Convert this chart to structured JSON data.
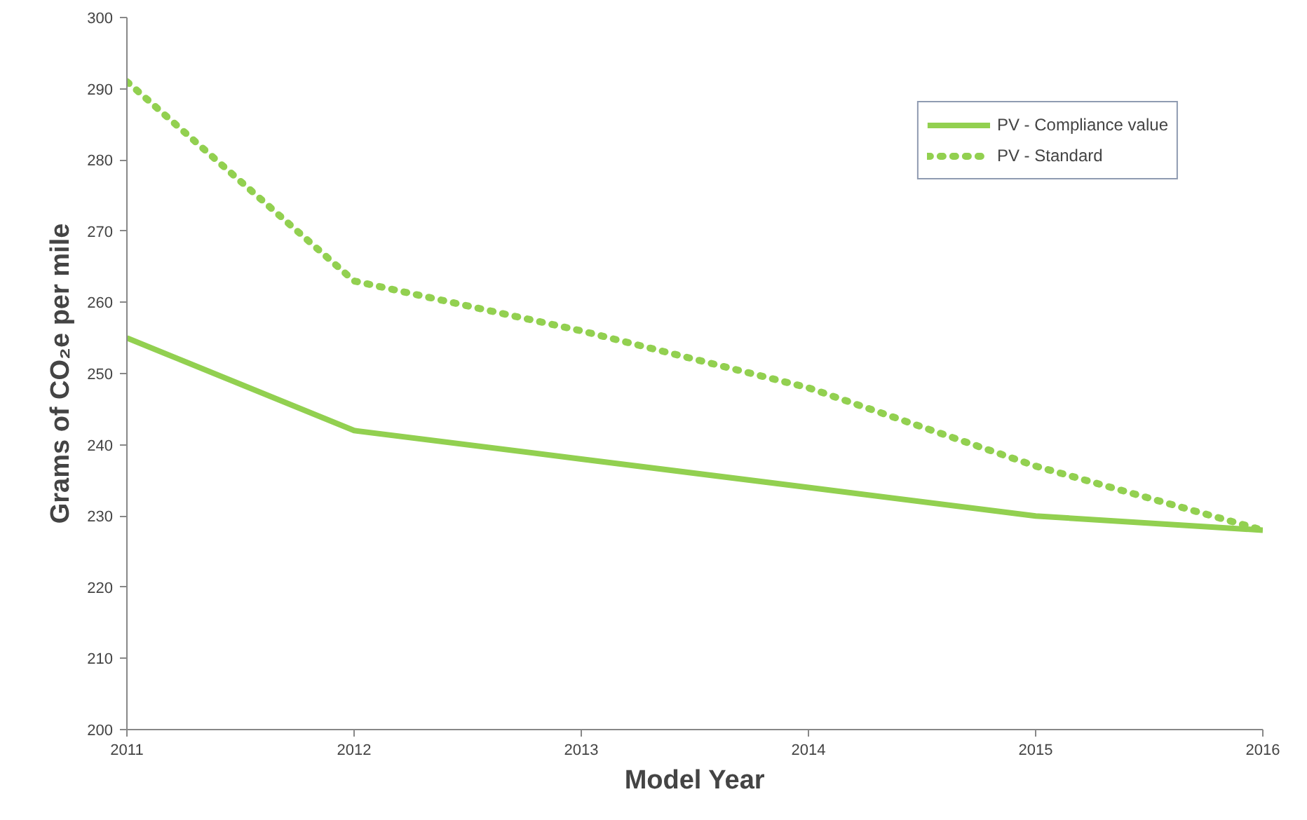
{
  "chart_data": {
    "type": "line",
    "xlabel": "Model Year",
    "ylabel": "Grams of CO₂e per mile",
    "x": [
      2011,
      2012,
      2013,
      2014,
      2015,
      2016
    ],
    "series": [
      {
        "name": "PV - Compliance value",
        "color": "#92d050",
        "line_style": "solid",
        "values": [
          255,
          242,
          238,
          234,
          230,
          228
        ]
      },
      {
        "name": "PV - Standard",
        "color": "#92d050",
        "line_style": "dotted",
        "values": [
          291,
          263,
          256,
          248,
          237,
          228
        ]
      }
    ],
    "xlim": [
      2011,
      2016
    ],
    "xticks": [
      2011,
      2012,
      2013,
      2014,
      2015,
      2016
    ],
    "ylim": [
      200,
      300
    ],
    "yticks": [
      200,
      210,
      220,
      230,
      240,
      250,
      260,
      270,
      280,
      290,
      300
    ],
    "grid": false,
    "legend": "top right",
    "marker": "none"
  }
}
